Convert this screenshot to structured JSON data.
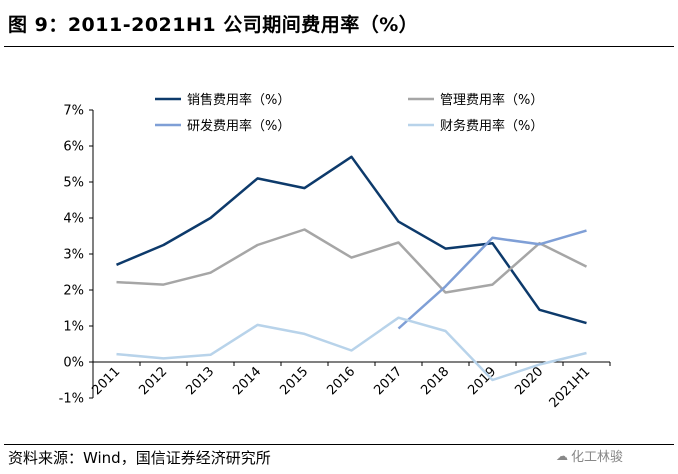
{
  "title": "图 9：2011-2021H1 公司期间费用率（%）",
  "source": "资料来源：Wind，国信证券经济研究所",
  "watermark": "化工林骏",
  "chart_data": {
    "type": "line",
    "categories": [
      "2011",
      "2012",
      "2013",
      "2014",
      "2015",
      "2016",
      "2017",
      "2018",
      "2019",
      "2020",
      "2021H1"
    ],
    "ylim": [
      -1,
      7
    ],
    "yticks": [
      "-1%",
      "0%",
      "1%",
      "2%",
      "3%",
      "4%",
      "5%",
      "6%",
      "7%"
    ],
    "grid": false,
    "legend_position": "top",
    "series": [
      {
        "name": "销售费用率（%）",
        "color": "#0d3a6b",
        "values": [
          2.7,
          3.25,
          4.0,
          5.1,
          4.83,
          5.7,
          3.9,
          3.15,
          3.3,
          1.45,
          1.08
        ]
      },
      {
        "name": "管理费用率（%）",
        "color": "#a6a6a6",
        "values": [
          2.22,
          2.15,
          2.48,
          3.25,
          3.68,
          2.9,
          3.32,
          1.93,
          2.15,
          3.3,
          2.65
        ]
      },
      {
        "name": "研发费用率（%）",
        "color": "#7f9fd6",
        "values": [
          null,
          null,
          null,
          null,
          null,
          null,
          0.93,
          2.1,
          3.45,
          3.27,
          3.65
        ]
      },
      {
        "name": "财务费用率（%）",
        "color": "#b8d3ea",
        "values": [
          0.22,
          0.1,
          0.2,
          1.03,
          0.78,
          0.32,
          1.23,
          0.86,
          -0.5,
          -0.07,
          0.25
        ]
      }
    ]
  }
}
